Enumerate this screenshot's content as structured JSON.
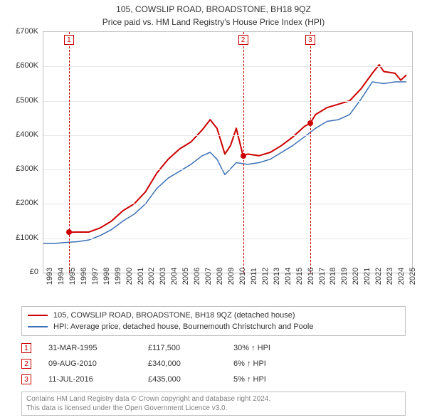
{
  "title_line1": "105, COWSLIP ROAD, BROADSTONE, BH18 9QZ",
  "title_line2": "Price paid vs. HM Land Registry's House Price Index (HPI)",
  "chart": {
    "type": "line",
    "plot_bg": "#ffffff",
    "grid_color": "#e6e6e6",
    "border_color": "#bfbfbf",
    "x_years": [
      1993,
      1994,
      1995,
      1996,
      1997,
      1998,
      1999,
      2000,
      2001,
      2002,
      2003,
      2004,
      2005,
      2006,
      2007,
      2008,
      2009,
      2010,
      2011,
      2012,
      2013,
      2014,
      2015,
      2016,
      2017,
      2018,
      2019,
      2020,
      2021,
      2022,
      2023,
      2024,
      2025
    ],
    "y_ticks": [
      0,
      100,
      200,
      300,
      400,
      500,
      600,
      700
    ],
    "y_tick_labels": [
      "£0",
      "£100K",
      "£200K",
      "£300K",
      "£400K",
      "£500K",
      "£600K",
      "£700K"
    ],
    "ylim": [
      0,
      700
    ],
    "xlim": [
      1993,
      2025.5
    ],
    "label_fontsize": 11,
    "series": [
      {
        "name": "red",
        "color": "#cc0000",
        "width": 2,
        "points": [
          [
            1995.25,
            117.5
          ],
          [
            1996,
            118
          ],
          [
            1997,
            118
          ],
          [
            1998,
            130
          ],
          [
            1999,
            150
          ],
          [
            2000,
            180
          ],
          [
            2001,
            200
          ],
          [
            2002,
            235
          ],
          [
            2003,
            290
          ],
          [
            2004,
            330
          ],
          [
            2005,
            360
          ],
          [
            2006,
            380
          ],
          [
            2007,
            415
          ],
          [
            2007.7,
            445
          ],
          [
            2008.3,
            420
          ],
          [
            2009,
            345
          ],
          [
            2009.5,
            370
          ],
          [
            2010,
            420
          ],
          [
            2010.6,
            340
          ],
          [
            2011,
            345
          ],
          [
            2012,
            340
          ],
          [
            2013,
            350
          ],
          [
            2014,
            370
          ],
          [
            2015,
            395
          ],
          [
            2016,
            425
          ],
          [
            2016.52,
            435
          ],
          [
            2017,
            460
          ],
          [
            2018,
            480
          ],
          [
            2019,
            490
          ],
          [
            2020,
            500
          ],
          [
            2021,
            535
          ],
          [
            2022,
            580
          ],
          [
            2022.6,
            605
          ],
          [
            2023,
            585
          ],
          [
            2024,
            580
          ],
          [
            2024.5,
            560
          ],
          [
            2025,
            575
          ]
        ]
      },
      {
        "name": "blue",
        "color": "#3b6fb6",
        "width": 1.5,
        "points": [
          [
            1993,
            85
          ],
          [
            1994,
            85
          ],
          [
            1995,
            88
          ],
          [
            1996,
            90
          ],
          [
            1997,
            95
          ],
          [
            1998,
            108
          ],
          [
            1999,
            125
          ],
          [
            2000,
            150
          ],
          [
            2001,
            170
          ],
          [
            2002,
            200
          ],
          [
            2003,
            245
          ],
          [
            2004,
            275
          ],
          [
            2005,
            295
          ],
          [
            2006,
            315
          ],
          [
            2007,
            340
          ],
          [
            2007.7,
            350
          ],
          [
            2008.3,
            330
          ],
          [
            2009,
            285
          ],
          [
            2010,
            320
          ],
          [
            2011,
            315
          ],
          [
            2012,
            320
          ],
          [
            2013,
            330
          ],
          [
            2014,
            350
          ],
          [
            2015,
            370
          ],
          [
            2016,
            395
          ],
          [
            2017,
            420
          ],
          [
            2018,
            440
          ],
          [
            2019,
            445
          ],
          [
            2020,
            460
          ],
          [
            2021,
            505
          ],
          [
            2022,
            555
          ],
          [
            2023,
            550
          ],
          [
            2024,
            555
          ],
          [
            2025,
            555
          ]
        ]
      }
    ],
    "sale_events": [
      {
        "n": "1",
        "year": 1995.25,
        "value": 117.5
      },
      {
        "n": "2",
        "year": 2010.6,
        "value": 340
      },
      {
        "n": "3",
        "year": 2016.52,
        "value": 435
      }
    ]
  },
  "legend": {
    "border_color": "#bfbfbf",
    "items": [
      {
        "color": "#cc0000",
        "label": "105, COWSLIP ROAD, BROADSTONE, BH18 9QZ (detached house)"
      },
      {
        "color": "#3b6fb6",
        "label": "HPI: Average price, detached house, Bournemouth Christchurch and Poole"
      }
    ]
  },
  "sales": [
    {
      "n": "1",
      "date": "31-MAR-1995",
      "price": "£117,500",
      "delta": "30% ↑ HPI"
    },
    {
      "n": "2",
      "date": "09-AUG-2010",
      "price": "£340,000",
      "delta": "6% ↑ HPI"
    },
    {
      "n": "3",
      "date": "11-JUL-2016",
      "price": "£435,000",
      "delta": "5% ↑ HPI"
    }
  ],
  "footer_line1": "Contains HM Land Registry data © Crown copyright and database right 2024.",
  "footer_line2": "This data is licensed under the Open Government Licence v3.0."
}
